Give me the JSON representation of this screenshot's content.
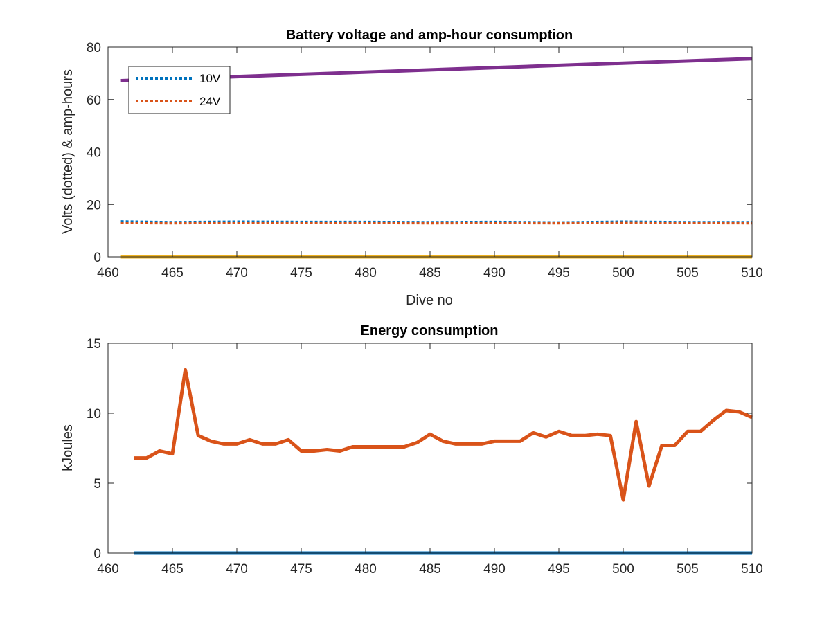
{
  "chart_data": [
    {
      "type": "line",
      "title": "Battery voltage and amp-hour consumption",
      "xlabel": "Dive no",
      "ylabel": "Volts (dotted) & amp-hours",
      "xlim": [
        460,
        510
      ],
      "ylim": [
        0,
        80
      ],
      "xticks": [
        460,
        465,
        470,
        475,
        480,
        485,
        490,
        495,
        500,
        505,
        510
      ],
      "yticks": [
        0,
        20,
        40,
        60,
        80
      ],
      "legend_position": "top-left",
      "series": [
        {
          "name": "10V",
          "style": "dotted",
          "color": "#0072BD",
          "x": [
            461,
            465,
            470,
            475,
            480,
            485,
            490,
            495,
            500,
            505,
            510
          ],
          "y": [
            13.5,
            13.2,
            13.4,
            13.3,
            13.3,
            13.2,
            13.3,
            13.1,
            13.4,
            13.2,
            13.2
          ]
        },
        {
          "name": "24V",
          "style": "dotted",
          "color": "#D95319",
          "x": [
            461,
            465,
            470,
            475,
            480,
            485,
            490,
            495,
            500,
            505,
            510
          ],
          "y": [
            12.9,
            12.8,
            13.0,
            12.9,
            12.9,
            12.8,
            12.9,
            12.8,
            13.1,
            12.9,
            12.8
          ]
        },
        {
          "style": "solid",
          "color": "#7E2F8E",
          "x": [
            461,
            510
          ],
          "y": [
            67.2,
            75.6
          ]
        },
        {
          "style": "solid",
          "color": "#EDB120",
          "x": [
            461,
            510
          ],
          "y": [
            0,
            0
          ]
        }
      ]
    },
    {
      "type": "line",
      "title": "Energy consumption",
      "xlabel": "",
      "ylabel": "kJoules",
      "xlim": [
        460,
        510
      ],
      "ylim": [
        0,
        15
      ],
      "xticks": [
        460,
        465,
        470,
        475,
        480,
        485,
        490,
        495,
        500,
        505,
        510
      ],
      "yticks": [
        0,
        5,
        10,
        15
      ],
      "series": [
        {
          "style": "solid",
          "color": "#0072BD",
          "x": [
            462,
            510
          ],
          "y": [
            0,
            0
          ]
        },
        {
          "style": "solid",
          "color": "#D95319",
          "x": [
            462,
            463,
            464,
            465,
            466,
            467,
            468,
            469,
            470,
            471,
            472,
            473,
            474,
            475,
            476,
            477,
            478,
            479,
            480,
            481,
            482,
            483,
            484,
            485,
            486,
            487,
            488,
            489,
            490,
            491,
            492,
            493,
            494,
            495,
            496,
            497,
            498,
            499,
            500,
            501,
            502,
            503,
            504,
            505,
            506,
            507,
            508,
            509,
            510
          ],
          "y": [
            6.8,
            6.8,
            7.3,
            7.1,
            13.1,
            8.4,
            8.0,
            7.8,
            7.8,
            8.1,
            7.8,
            7.8,
            8.1,
            7.3,
            7.3,
            7.4,
            7.3,
            7.6,
            7.6,
            7.6,
            7.6,
            7.6,
            7.9,
            8.5,
            8.0,
            7.8,
            7.8,
            7.8,
            8.0,
            8.0,
            8.0,
            8.6,
            8.3,
            8.7,
            8.4,
            8.4,
            8.5,
            8.4,
            3.8,
            9.4,
            4.8,
            7.7,
            7.7,
            8.7,
            8.7,
            9.5,
            10.2,
            10.1,
            9.7
          ]
        }
      ]
    }
  ]
}
